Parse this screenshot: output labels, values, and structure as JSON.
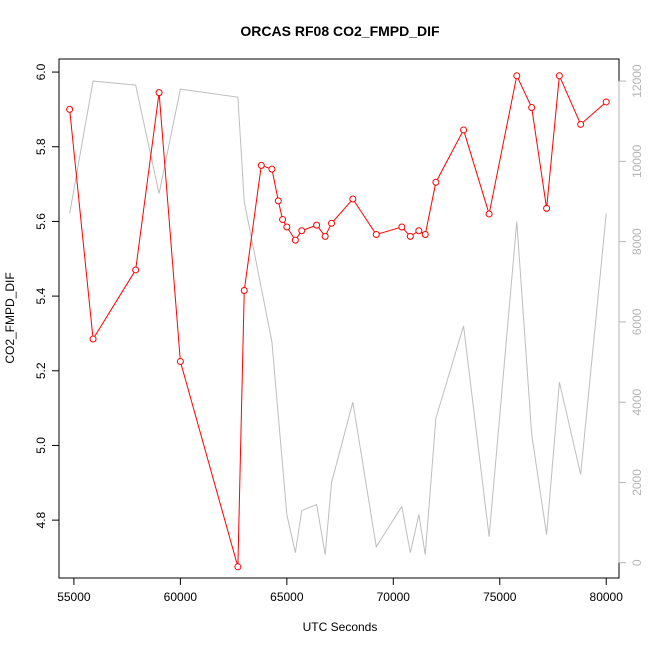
{
  "chart_data": {
    "type": "line",
    "title": "ORCAS RF08 CO2_FMPD_DIF",
    "xlabel": "UTC Seconds",
    "ylabel": "CO2_FMPD_DIF",
    "y2label": "",
    "xlim": [
      54300,
      80600
    ],
    "ylim": [
      4.645,
      6.035
    ],
    "y2lim": [
      -380,
      12550
    ],
    "x_ticks": [
      55000,
      60000,
      65000,
      70000,
      75000,
      80000
    ],
    "y_ticks": [
      4.8,
      5.0,
      5.2,
      5.4,
      5.6,
      5.8,
      6.0
    ],
    "y2_ticks": [
      0,
      2000,
      4000,
      6000,
      8000,
      10000,
      12000
    ],
    "grid": false,
    "colors": {
      "primary": "#ff0000",
      "secondary": "#bebebe",
      "axis": "#000000",
      "axis_right": "#b4b4b4"
    },
    "series": [
      {
        "axis": "left",
        "style": "line-with-open-circles",
        "color": "#ff0000",
        "x": [
          54800,
          55900,
          57900,
          59000,
          60000,
          62700,
          63000,
          63800,
          64300,
          64600,
          64800,
          65000,
          65400,
          65700,
          66400,
          66800,
          67100,
          68100,
          69200,
          70400,
          70800,
          71200,
          71500,
          72000,
          73300,
          74500,
          75800,
          76500,
          77200,
          77800,
          78800,
          80000
        ],
        "values": [
          5.9,
          5.285,
          5.47,
          5.945,
          5.225,
          4.675,
          5.415,
          5.75,
          5.74,
          5.655,
          5.605,
          5.585,
          5.55,
          5.575,
          5.59,
          5.56,
          5.595,
          5.66,
          5.565,
          5.585,
          5.56,
          5.575,
          5.565,
          5.705,
          5.845,
          5.62,
          5.99,
          5.905,
          5.635,
          5.99,
          5.86,
          5.92
        ]
      },
      {
        "axis": "right",
        "style": "line",
        "color": "#bebebe",
        "x": [
          54800,
          55900,
          57900,
          59000,
          60000,
          62700,
          63000,
          64300,
          65000,
          65400,
          65700,
          66400,
          66800,
          67100,
          68100,
          69200,
          70400,
          70800,
          71200,
          71500,
          72000,
          73300,
          74500,
          75800,
          76500,
          77200,
          77800,
          78800,
          80000
        ],
        "values": [
          8700,
          12000,
          11900,
          9200,
          11800,
          11600,
          9000,
          5500,
          1200,
          250,
          1300,
          1450,
          200,
          2000,
          4000,
          400,
          1400,
          250,
          1200,
          200,
          3600,
          5900,
          650,
          8500,
          3200,
          700,
          4500,
          2200,
          8700
        ]
      }
    ]
  }
}
